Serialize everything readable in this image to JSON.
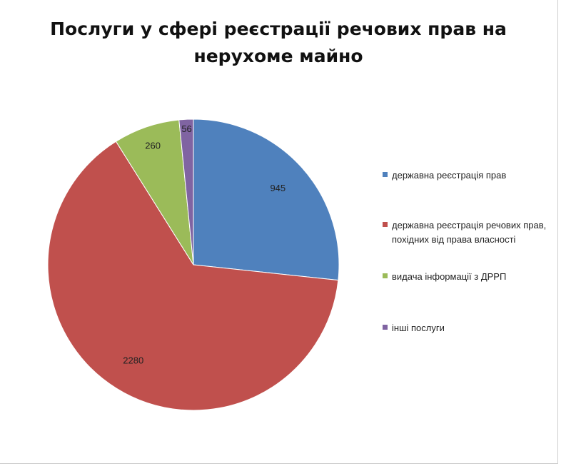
{
  "chart_data": {
    "type": "pie",
    "title": "Послуги у сфері реєстрації речових прав на нерухоме майно",
    "categories": [
      "державна реєстрація прав",
      "державна реєстрація речових прав, похідних від права власності",
      "видача інформації з ДРРП",
      "інші послуги"
    ],
    "values": [
      945,
      2280,
      260,
      56
    ],
    "colors": [
      "#4F81BD",
      "#C0504D",
      "#9BBB59",
      "#8064A2"
    ],
    "legend_position": "right",
    "start_angle_deg": 0,
    "direction": "clockwise"
  }
}
